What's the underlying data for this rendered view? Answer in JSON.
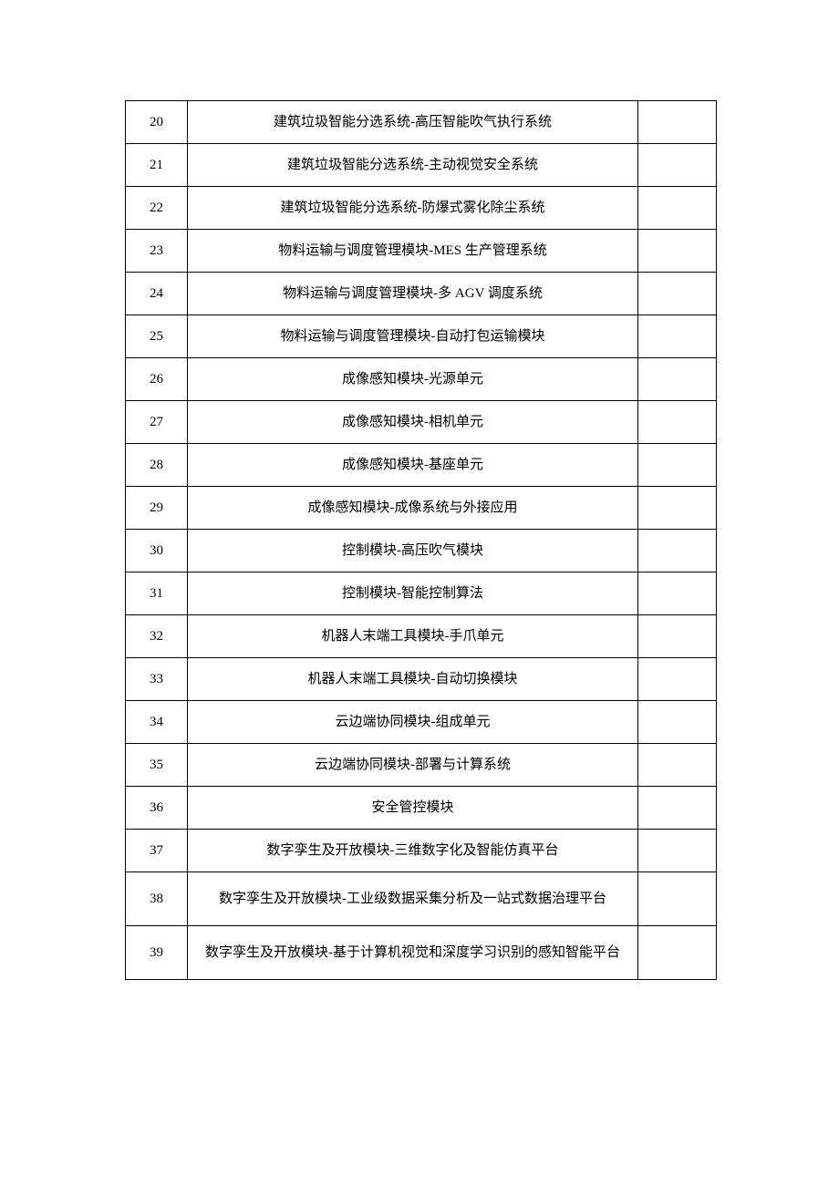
{
  "table": {
    "columns": {
      "num_width": 68,
      "desc_width": 495,
      "empty_width": 86
    },
    "border_color": "#000000",
    "background_color": "#ffffff",
    "text_color": "#000000",
    "font_size": 15,
    "font_family": "SimSun",
    "rows": [
      {
        "num": "20",
        "desc": "建筑垃圾智能分选系统-高压智能吹气执行系统",
        "multiline": false
      },
      {
        "num": "21",
        "desc": "建筑垃圾智能分选系统-主动视觉安全系统",
        "multiline": false
      },
      {
        "num": "22",
        "desc": "建筑垃圾智能分选系统-防爆式雾化除尘系统",
        "multiline": false
      },
      {
        "num": "23",
        "desc": "物料运输与调度管理模块-MES 生产管理系统",
        "multiline": false
      },
      {
        "num": "24",
        "desc": "物料运输与调度管理模块-多 AGV 调度系统",
        "multiline": false
      },
      {
        "num": "25",
        "desc": "物料运输与调度管理模块-自动打包运输模块",
        "multiline": false
      },
      {
        "num": "26",
        "desc": "成像感知模块-光源单元",
        "multiline": false
      },
      {
        "num": "27",
        "desc": "成像感知模块-相机单元",
        "multiline": false
      },
      {
        "num": "28",
        "desc": "成像感知模块-基座单元",
        "multiline": false
      },
      {
        "num": "29",
        "desc": "成像感知模块-成像系统与外接应用",
        "multiline": false
      },
      {
        "num": "30",
        "desc": "控制模块-高压吹气模块",
        "multiline": false
      },
      {
        "num": "31",
        "desc": "控制模块-智能控制算法",
        "multiline": false
      },
      {
        "num": "32",
        "desc": "机器人末端工具模块-手爪单元",
        "multiline": false
      },
      {
        "num": "33",
        "desc": "机器人末端工具模块-自动切换模块",
        "multiline": false
      },
      {
        "num": "34",
        "desc": "云边端协同模块-组成单元",
        "multiline": false
      },
      {
        "num": "35",
        "desc": "云边端协同模块-部署与计算系统",
        "multiline": false
      },
      {
        "num": "36",
        "desc": "安全管控模块",
        "multiline": false
      },
      {
        "num": "37",
        "desc": "数字孪生及开放模块-三维数字化及智能仿真平台",
        "multiline": false
      },
      {
        "num": "38",
        "desc": "数字孪生及开放模块-工业级数据采集分析及一站式数据治理平台",
        "multiline": true
      },
      {
        "num": "39",
        "desc": "数字孪生及开放模块-基于计算机视觉和深度学习识别的感知智能平台",
        "multiline": true
      }
    ]
  }
}
